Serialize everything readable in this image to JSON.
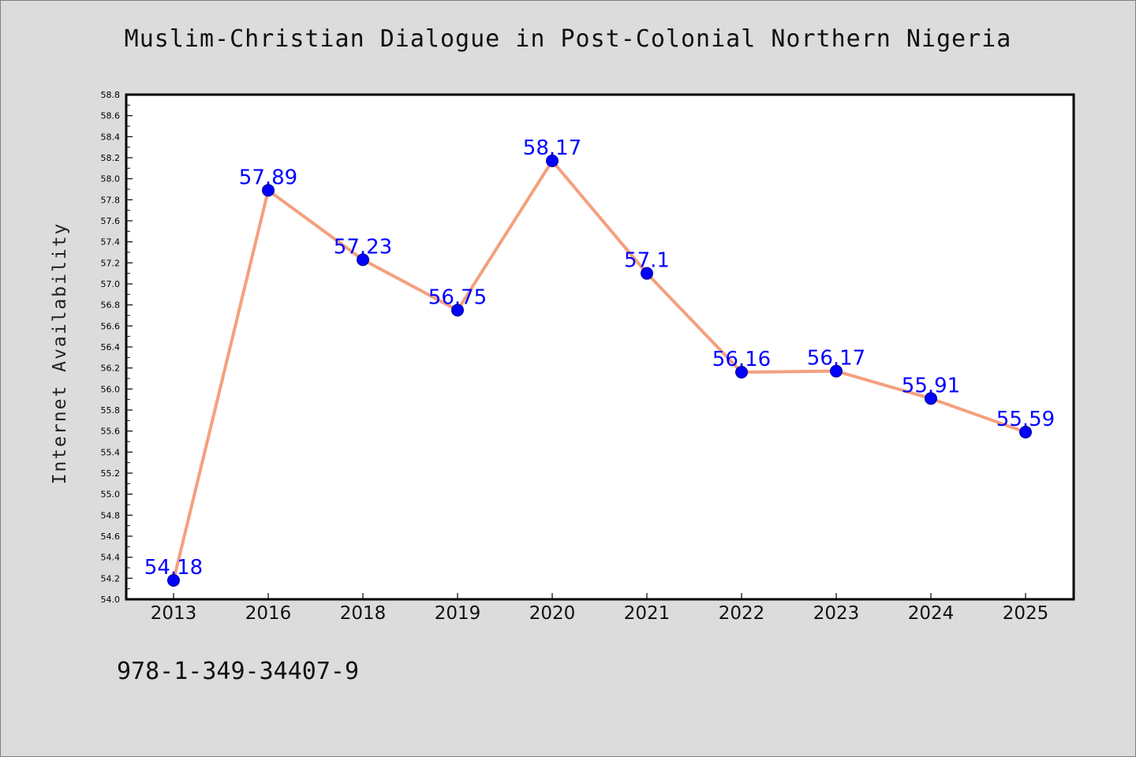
{
  "title": "Muslim-Christian Dialogue in Post-Colonial Northern Nigeria",
  "footer_text": "978-1-349-34407-9",
  "chart_data": {
    "type": "line",
    "title": "Muslim-Christian Dialogue in Post-Colonial Northern Nigeria",
    "xlabel": "",
    "ylabel": "Internet Availability",
    "categories": [
      "2013",
      "2016",
      "2018",
      "2019",
      "2020",
      "2021",
      "2022",
      "2023",
      "2024",
      "2025"
    ],
    "series": [
      {
        "values": [
          54.18,
          57.89,
          57.23,
          56.75,
          58.17,
          57.1,
          56.16,
          56.17,
          55.91,
          55.59
        ],
        "labels": [
          "54.18",
          "57.89",
          "57.23",
          "56.75",
          "58.17",
          "57.1",
          "56.16",
          "56.17",
          "55.91",
          "55.59"
        ],
        "line_color": "#f4a07e",
        "marker_color": "#0000ff"
      }
    ],
    "ylim": [
      54.0,
      58.8
    ],
    "y_ticks": [
      "54.0",
      "54.2",
      "54.4",
      "54.6",
      "54.8",
      "55.0",
      "55.2",
      "55.4",
      "55.6",
      "55.8",
      "56.0",
      "56.2",
      "56.4",
      "56.6",
      "56.8",
      "57.0",
      "57.2",
      "57.4",
      "57.6",
      "57.8",
      "58.0",
      "58.2",
      "58.4",
      "58.6",
      "58.8"
    ],
    "grid": false,
    "legend": "none",
    "plot_background": "#ffffff",
    "page_background": "#dcdcdc"
  }
}
